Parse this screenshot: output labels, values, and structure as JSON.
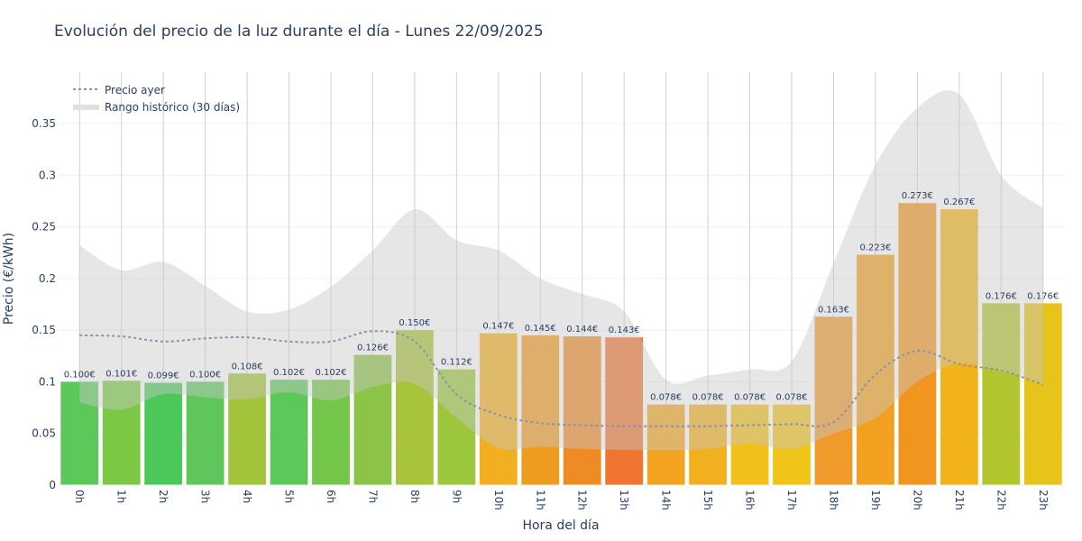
{
  "chart_data": {
    "type": "bar",
    "title": "Evolución del precio de la luz durante el día - Lunes 22/09/2025",
    "xlabel": "Hora del día",
    "ylabel": "Precio (€/kWh)",
    "ylim": [
      0,
      0.4
    ],
    "yticks": [
      0,
      0.05,
      0.1,
      0.15,
      0.2,
      0.25,
      0.3,
      0.35
    ],
    "ytick_labels": [
      "0",
      "0.05",
      "0.1",
      "0.15",
      "0.2",
      "0.25",
      "0.3",
      "0.35"
    ],
    "grid": true,
    "legend_position": "top-left",
    "categories": [
      "0h",
      "1h",
      "2h",
      "3h",
      "4h",
      "5h",
      "6h",
      "7h",
      "8h",
      "9h",
      "10h",
      "11h",
      "12h",
      "13h",
      "14h",
      "15h",
      "16h",
      "17h",
      "18h",
      "19h",
      "20h",
      "21h",
      "22h",
      "23h"
    ],
    "values": [
      0.1,
      0.101,
      0.099,
      0.1,
      0.108,
      0.102,
      0.102,
      0.126,
      0.15,
      0.112,
      0.147,
      0.145,
      0.144,
      0.143,
      0.078,
      0.078,
      0.078,
      0.078,
      0.163,
      0.223,
      0.273,
      0.267,
      0.176,
      0.176
    ],
    "labels": [
      "0.100€",
      "0.101€",
      "0.099€",
      "0.100€",
      "0.108€",
      "0.102€",
      "0.102€",
      "0.126€",
      "0.150€",
      "0.112€",
      "0.147€",
      "0.145€",
      "0.144€",
      "0.143€",
      "0.078€",
      "0.078€",
      "0.078€",
      "0.078€",
      "0.163€",
      "0.223€",
      "0.273€",
      "0.267€",
      "0.176€",
      "0.176€"
    ],
    "bar_colors": [
      "#5cc85a",
      "#7ac844",
      "#4cc85a",
      "#5ec65a",
      "#a2c43a",
      "#5cc85a",
      "#74c64a",
      "#8cc448",
      "#a8c43a",
      "#9cc63c",
      "#f2b020",
      "#ee9c20",
      "#ef8b25",
      "#ef7530",
      "#f2a420",
      "#f2b01e",
      "#f2c018",
      "#f0c418",
      "#ef9a2a",
      "#f2a01f",
      "#f0961f",
      "#f2b31a",
      "#b2c42e",
      "#e6c41a"
    ],
    "series": [
      {
        "name": "Precio ayer",
        "values": [
          0.145,
          0.144,
          0.139,
          0.142,
          0.143,
          0.139,
          0.139,
          0.149,
          0.139,
          0.088,
          0.068,
          0.06,
          0.058,
          0.057,
          0.057,
          0.057,
          0.058,
          0.059,
          0.061,
          0.107,
          0.13,
          0.117,
          0.111,
          0.097
        ],
        "color": "#8a94a6"
      },
      {
        "name": "Rango histórico (30 días)",
        "upper": [
          0.232,
          0.208,
          0.216,
          0.193,
          0.168,
          0.17,
          0.192,
          0.227,
          0.267,
          0.237,
          0.227,
          0.2,
          0.185,
          0.168,
          0.102,
          0.106,
          0.112,
          0.12,
          0.215,
          0.31,
          0.365,
          0.378,
          0.3,
          0.268
        ],
        "lower": [
          0.08,
          0.073,
          0.088,
          0.085,
          0.083,
          0.09,
          0.082,
          0.095,
          0.098,
          0.065,
          0.036,
          0.037,
          0.035,
          0.034,
          0.034,
          0.035,
          0.04,
          0.035,
          0.05,
          0.065,
          0.1,
          0.118,
          0.11,
          0.098
        ],
        "color": "#d3d3d3"
      }
    ]
  }
}
